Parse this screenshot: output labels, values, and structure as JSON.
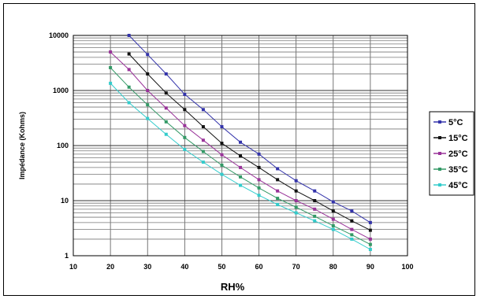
{
  "chart_data": {
    "type": "line",
    "title": "",
    "xlabel": "RH%",
    "ylabel": "Impédance (Kohms)",
    "xlim": [
      10,
      100
    ],
    "ylim": [
      1,
      10000
    ],
    "yscale": "log",
    "x_ticks": [
      "10",
      "20",
      "30",
      "40",
      "50",
      "60",
      "70",
      "80",
      "90",
      "100"
    ],
    "y_ticks": [
      "1",
      "10",
      "100",
      "1000",
      "10000"
    ],
    "grid": true,
    "legend_position": "right",
    "series": [
      {
        "name": "5°C",
        "color": "#3333aa",
        "x": [
          25,
          30,
          35,
          40,
          45,
          50,
          55,
          60,
          65,
          70,
          75,
          80,
          85,
          90
        ],
        "y": [
          10000,
          4500,
          2000,
          850,
          450,
          220,
          115,
          70,
          38,
          23,
          15,
          9.5,
          6.5,
          4
        ]
      },
      {
        "name": "15°C",
        "color": "#111111",
        "x": [
          25,
          30,
          35,
          40,
          45,
          50,
          55,
          60,
          65,
          70,
          75,
          80,
          85,
          90
        ],
        "y": [
          4600,
          2000,
          900,
          450,
          220,
          110,
          65,
          40,
          24,
          15,
          10,
          6.5,
          4.3,
          2.9
        ]
      },
      {
        "name": "25°C",
        "color": "#993399",
        "x": [
          20,
          25,
          30,
          35,
          40,
          45,
          50,
          55,
          60,
          65,
          70,
          75,
          80,
          85,
          90
        ],
        "y": [
          5000,
          2400,
          1000,
          480,
          230,
          125,
          68,
          40,
          24,
          15,
          10,
          7,
          4.6,
          3,
          2
        ]
      },
      {
        "name": "35°C",
        "color": "#339966",
        "x": [
          20,
          25,
          30,
          35,
          40,
          45,
          50,
          55,
          60,
          65,
          70,
          75,
          80,
          85,
          90
        ],
        "y": [
          2600,
          1150,
          550,
          270,
          140,
          78,
          44,
          27,
          17,
          11,
          7.6,
          5.2,
          3.5,
          2.4,
          1.6
        ]
      },
      {
        "name": "45°C",
        "color": "#33cccc",
        "x": [
          20,
          25,
          30,
          35,
          40,
          45,
          50,
          55,
          60,
          65,
          70,
          75,
          80,
          85,
          90
        ],
        "y": [
          1350,
          600,
          310,
          160,
          85,
          50,
          30,
          19,
          12.5,
          8.5,
          6,
          4.3,
          3,
          2,
          1.3
        ]
      }
    ]
  }
}
